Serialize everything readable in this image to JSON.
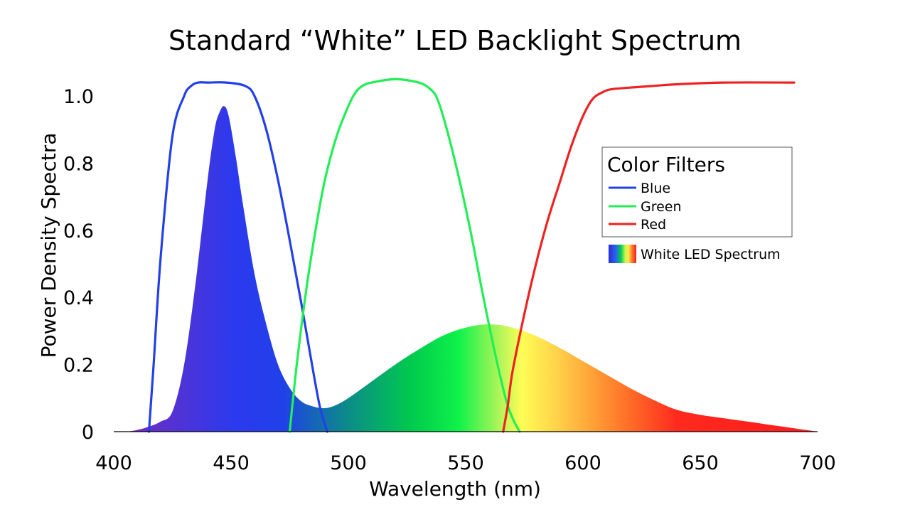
{
  "chart_data": {
    "type": "line",
    "title": "Standard “White” LED Backlight Spectrum",
    "xlabel": "Wavelength (nm)",
    "ylabel": "Power Density Spectra",
    "xlim": [
      400,
      700
    ],
    "ylim": [
      0,
      1.0
    ],
    "x_ticks": [
      "400",
      "450",
      "500",
      "550",
      "600",
      "650",
      "700"
    ],
    "y_ticks": [
      "0",
      "0.2",
      "0.4",
      "0.6",
      "0.8",
      "1.0"
    ],
    "grid": false,
    "legend": {
      "title": "Color Filters",
      "placement": "right",
      "entries": [
        "Blue",
        "Green",
        "Red"
      ],
      "spectrum_label": "White LED Spectrum"
    },
    "series": [
      {
        "name": "Blue",
        "color": "#2340e8",
        "x": [
          415,
          417,
          420,
          425,
          430,
          433,
          436,
          440,
          448,
          456,
          460,
          465,
          470,
          475,
          480,
          485,
          488,
          491
        ],
        "y": [
          0.0,
          0.2,
          0.52,
          0.88,
          1.0,
          1.03,
          1.04,
          1.04,
          1.04,
          1.03,
          1.0,
          0.9,
          0.75,
          0.57,
          0.38,
          0.18,
          0.07,
          0.0
        ]
      },
      {
        "name": "Green",
        "color": "#22ee55",
        "x": [
          475,
          478,
          482,
          486,
          490,
          495,
          500,
          503,
          506,
          510,
          520,
          530,
          535,
          538,
          542,
          547,
          552,
          557,
          562,
          567,
          570,
          573
        ],
        "y": [
          0.0,
          0.2,
          0.42,
          0.6,
          0.75,
          0.88,
          0.97,
          1.01,
          1.03,
          1.04,
          1.05,
          1.04,
          1.02,
          0.99,
          0.9,
          0.76,
          0.6,
          0.42,
          0.25,
          0.1,
          0.04,
          0.0
        ]
      },
      {
        "name": "Red",
        "color": "#ee2222",
        "x": [
          566,
          568,
          570,
          575,
          580,
          585,
          590,
          595,
          600,
          604,
          608,
          612,
          620,
          630,
          640,
          660,
          690
        ],
        "y": [
          0.0,
          0.08,
          0.18,
          0.35,
          0.5,
          0.63,
          0.74,
          0.85,
          0.94,
          0.99,
          1.01,
          1.02,
          1.025,
          1.03,
          1.035,
          1.04,
          1.04
        ]
      },
      {
        "name": "White LED Spectrum",
        "type": "area",
        "x": [
          400,
          405,
          410,
          415,
          420,
          425,
          430,
          435,
          440,
          443,
          445,
          447,
          449,
          452,
          455,
          460,
          465,
          470,
          475,
          480,
          485,
          490,
          495,
          500,
          510,
          520,
          530,
          540,
          550,
          560,
          570,
          580,
          590,
          600,
          610,
          620,
          630,
          640,
          650,
          660,
          670,
          680,
          690,
          700
        ],
        "y": [
          0.0,
          0.0,
          0.005,
          0.015,
          0.03,
          0.06,
          0.2,
          0.45,
          0.75,
          0.9,
          0.95,
          0.97,
          0.94,
          0.82,
          0.68,
          0.47,
          0.32,
          0.2,
          0.13,
          0.09,
          0.075,
          0.07,
          0.08,
          0.1,
          0.15,
          0.2,
          0.245,
          0.285,
          0.31,
          0.32,
          0.31,
          0.285,
          0.25,
          0.21,
          0.17,
          0.13,
          0.095,
          0.065,
          0.05,
          0.04,
          0.03,
          0.02,
          0.01,
          0.0
        ]
      }
    ]
  }
}
